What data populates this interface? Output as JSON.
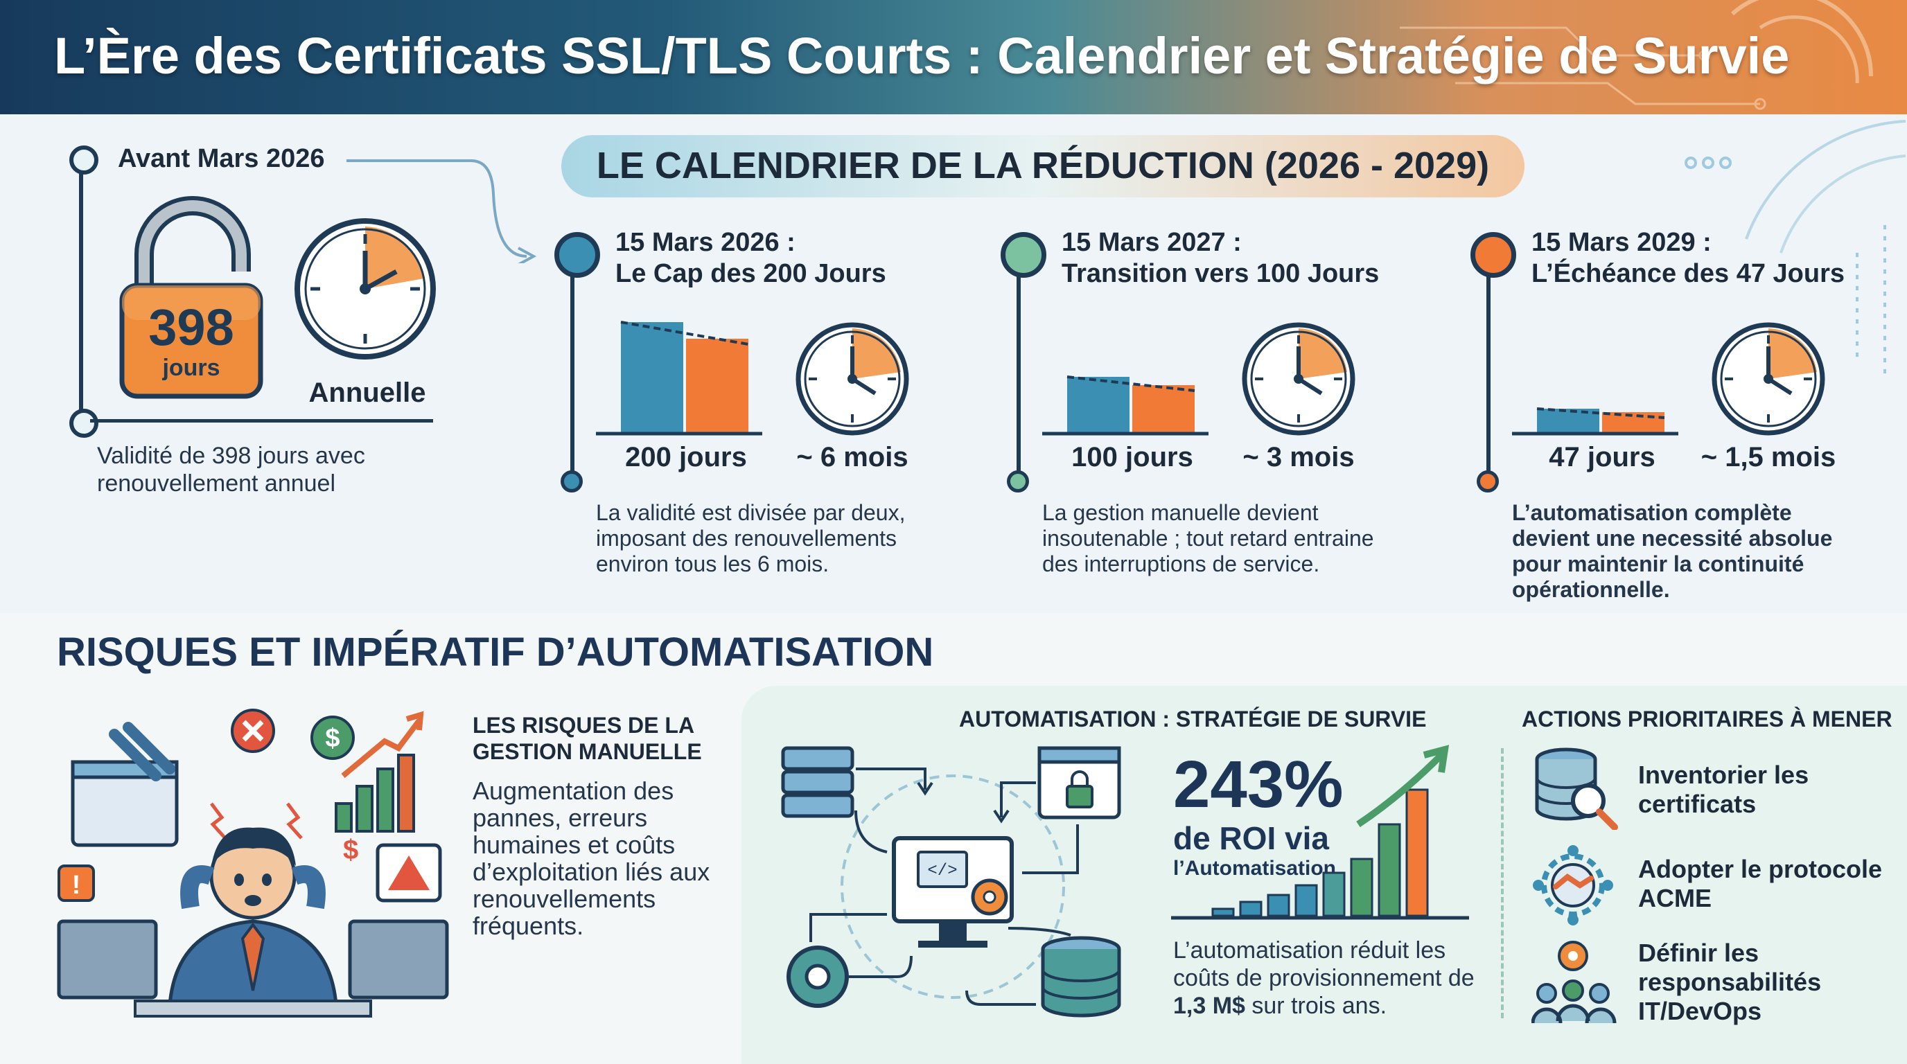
{
  "title": "L’Ère des Certificats SSL/TLS Courts : Calendrier et Stratégie de Survie",
  "current": {
    "label": "Avant Mars 2026",
    "lock_number": "398",
    "lock_unit": "jours",
    "clock_label": "Annuelle",
    "description": "Validité de 398 jours avec renouvellement annuel"
  },
  "timeline_title": "LE CALENDRIER DE LA RÉDUCTION (2026 - 2029)",
  "milestones": [
    {
      "date": "15 Mars 2026 :",
      "subtitle": "Le Cap des 200 Jours",
      "days": "200 jours",
      "period": "~ 6 mois",
      "description": "La validité est divisée par deux, imposant des renouvellements environ tous les 6 mois.",
      "color": "#3b8fb3",
      "bar_fraction": 0.55
    },
    {
      "date": "15 Mars 2027 :",
      "subtitle": "Transition vers 100 Jours",
      "days": "100 jours",
      "period": "~ 3 mois",
      "description": "La gestion manuelle devient insoutenable ; tout retard entraine des interruptions de service.",
      "color": "#7cc2a0",
      "bar_fraction": 0.28
    },
    {
      "date": "15 Mars 2029 :",
      "subtitle": "L’Échéance des 47 Jours",
      "days": "47 jours",
      "period": "~ 1,5 mois",
      "description": "L’automatisation complète devient une necessité absolue pour maintenir la continuité opérationnelle.",
      "color": "#f07a36",
      "bar_fraction": 0.12
    }
  ],
  "risks": {
    "section_title": "RISQUES ET IMPÉRATIF D’AUTOMATISATION",
    "heading": "LES RISQUES DE LA GESTION MANUELLE",
    "text": "Augmentation des pannes, erreurs humaines et coûts d’exploitation liés aux renouvellements fréquents."
  },
  "automation": {
    "heading": "AUTOMATISATION : STRATÉGIE DE SURVIE",
    "roi_value": "243%",
    "roi_label": "de ROI via",
    "roi_sub": "l’Automatisation",
    "text_before": "L’automatisation réduit les coûts de provisionnement de ",
    "text_highlight": "1,3 M$",
    "text_after": " sur trois ans."
  },
  "actions": {
    "heading": "ACTIONS PRIORITAIRES À MENER",
    "items": [
      {
        "label": "Inventorier les certificats",
        "icon": "database-search-icon"
      },
      {
        "label": "Adopter le protocole ACME",
        "icon": "handshake-gear-icon"
      },
      {
        "label": "Définir les responsabilités IT/DevOps",
        "icon": "team-gear-icon"
      }
    ]
  },
  "colors": {
    "blue": "#3b8fb3",
    "orange": "#f07a36",
    "green": "#7cc2a0",
    "navy": "#1f3a55"
  }
}
